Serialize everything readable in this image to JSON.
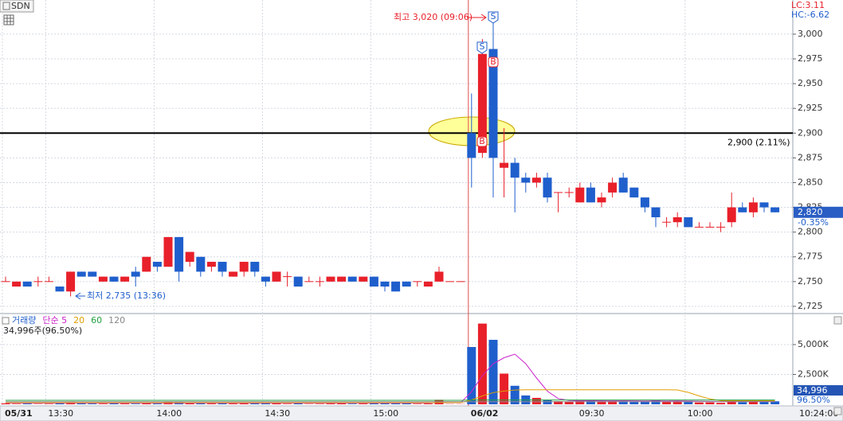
{
  "chart_data": {
    "type": "candlestick",
    "symbol": "SDN",
    "lc": "LC:3.11",
    "hc": "HC:-6.62",
    "categories": [
      "05/31",
      null,
      null,
      null,
      "13:30",
      null,
      null,
      null,
      null,
      null,
      null,
      null,
      null,
      null,
      "14:00",
      null,
      null,
      null,
      null,
      null,
      null,
      null,
      null,
      null,
      "14:30",
      null,
      null,
      null,
      null,
      null,
      null,
      null,
      null,
      null,
      "15:00",
      null,
      null,
      null,
      null,
      null,
      null,
      null,
      null,
      "06/02",
      null,
      null,
      null,
      null,
      null,
      null,
      null,
      null,
      null,
      "09:30",
      null,
      null,
      null,
      null,
      null,
      null,
      null,
      null,
      null,
      "10:00",
      null,
      null,
      null,
      null,
      null,
      null,
      null,
      null
    ],
    "open": [
      2750,
      2745,
      2750,
      2750,
      2750,
      2745,
      2740,
      2760,
      2760,
      2750,
      2755,
      2750,
      2760,
      2760,
      2770,
      2765,
      2795,
      2770,
      2775,
      2765,
      2770,
      2755,
      2760,
      2770,
      2755,
      2750,
      2755,
      2755,
      2750,
      2750,
      2750,
      2750,
      2755,
      2750,
      2755,
      2750,
      2750,
      2750,
      2750,
      2745,
      2750,
      2750,
      2750,
      2900,
      2880,
      2985,
      2865,
      2870,
      2855,
      2850,
      2855,
      2840,
      2840,
      2830,
      2845,
      2830,
      2840,
      2855,
      2845,
      2835,
      2825,
      2810,
      2810,
      2815,
      2805,
      2805,
      2805,
      2810,
      2825,
      2820,
      2830,
      2825
    ],
    "high": [
      2755,
      2750,
      2750,
      2755,
      2755,
      2745,
      2760,
      2760,
      2760,
      2755,
      2755,
      2755,
      2765,
      2775,
      2770,
      2795,
      2795,
      2780,
      2775,
      2770,
      2770,
      2760,
      2770,
      2770,
      2755,
      2760,
      2760,
      2755,
      2755,
      2755,
      2755,
      2755,
      2755,
      2755,
      2755,
      2750,
      2750,
      2750,
      2750,
      2750,
      2765,
      2750,
      2750,
      2940,
      2995,
      3020,
      2905,
      2875,
      2860,
      2860,
      2860,
      2840,
      2845,
      2850,
      2850,
      2840,
      2855,
      2860,
      2845,
      2835,
      2825,
      2815,
      2820,
      2815,
      2810,
      2810,
      2810,
      2840,
      2830,
      2835,
      2830,
      2825
    ],
    "low": [
      2750,
      2745,
      2745,
      2745,
      2750,
      2740,
      2735,
      2755,
      2755,
      2750,
      2750,
      2750,
      2745,
      2760,
      2760,
      2765,
      2750,
      2765,
      2755,
      2760,
      2755,
      2755,
      2755,
      2755,
      2745,
      2750,
      2745,
      2745,
      2750,
      2745,
      2750,
      2750,
      2750,
      2750,
      2745,
      2740,
      2740,
      2745,
      2745,
      2745,
      2750,
      2750,
      2750,
      2845,
      2875,
      2835,
      2835,
      2820,
      2840,
      2845,
      2830,
      2820,
      2835,
      2830,
      2830,
      2825,
      2835,
      2840,
      2835,
      2820,
      2805,
      2805,
      2805,
      2805,
      2805,
      2805,
      2800,
      2805,
      2820,
      2815,
      2820,
      2820
    ],
    "close": [
      2750,
      2750,
      2745,
      2750,
      2750,
      2740,
      2760,
      2755,
      2755,
      2755,
      2750,
      2755,
      2755,
      2775,
      2765,
      2795,
      2760,
      2780,
      2760,
      2770,
      2760,
      2760,
      2770,
      2760,
      2750,
      2760,
      2755,
      2745,
      2750,
      2750,
      2755,
      2755,
      2750,
      2755,
      2745,
      2745,
      2740,
      2745,
      2750,
      2750,
      2760,
      2750,
      2750,
      2875,
      2980,
      2875,
      2870,
      2855,
      2850,
      2855,
      2835,
      2840,
      2840,
      2845,
      2830,
      2835,
      2850,
      2840,
      2835,
      2825,
      2815,
      2810,
      2815,
      2805,
      2805,
      2805,
      2805,
      2825,
      2820,
      2830,
      2825,
      2820
    ],
    "up_color": "#e8202a",
    "down_color": "#1f5fcc",
    "ylim": [
      2718.5,
      3034.5
    ],
    "yticks": [
      {
        "value": 2725,
        "label": "2,725"
      },
      {
        "value": 2750,
        "label": "2,750"
      },
      {
        "value": 2775,
        "label": "2,775"
      },
      {
        "value": 2800,
        "label": "2,800"
      },
      {
        "value": 2825,
        "label": "2,825"
      },
      {
        "value": 2850,
        "label": "2,850"
      },
      {
        "value": 2875,
        "label": "2,875"
      },
      {
        "value": 2900,
        "label": "2,900"
      },
      {
        "value": 2925,
        "label": "2,925"
      },
      {
        "value": 2950,
        "label": "2,950"
      },
      {
        "value": 2975,
        "label": "2,975"
      },
      {
        "value": 3000,
        "label": "3,000"
      }
    ],
    "grid": true,
    "ref_line": {
      "value": 2900,
      "label": "2,900 (2.11%)",
      "color": "#000000"
    },
    "last_price": {
      "value": 2820,
      "label": "2,820"
    },
    "last_change": "-0.35%",
    "high_note": "최고 3,020 (09:06)",
    "low_note": "최저 2,735 (13:36)",
    "signals": [
      "S",
      "S",
      "B",
      "B"
    ],
    "last_time": "10:24:00",
    "volume_panel": {
      "ylim": [
        -133,
        7467
      ],
      "yticks": [
        {
          "value": 2500,
          "label": "2,500K"
        },
        {
          "value": 5000,
          "label": "5,000K"
        }
      ],
      "info": "34,996주(96.50%)",
      "last_label": "34,996",
      "last_ratio": "96.50%",
      "series": [
        {
          "name": "거래량",
          "color": "#1f5fcc",
          "values": [
            80,
            40,
            60,
            30,
            40,
            90,
            180,
            70,
            60,
            50,
            70,
            60,
            50,
            130,
            60,
            220,
            190,
            110,
            120,
            60,
            90,
            60,
            100,
            70,
            120,
            110,
            40,
            90,
            30,
            40,
            60,
            70,
            50,
            60,
            90,
            120,
            150,
            80,
            40,
            60,
            380,
            20,
            20,
            4800,
            6760,
            5400,
            2570,
            1550,
            740,
            540,
            380,
            260,
            200,
            320,
            340,
            250,
            300,
            260,
            240,
            280,
            330,
            200,
            280,
            300,
            150,
            160,
            120,
            320,
            180,
            260,
            200,
            250
          ]
        },
        {
          "name": "단순 5",
          "color": "#cc22cc",
          "values": [
            100,
            100,
            100,
            100,
            100,
            100,
            100,
            100,
            100,
            100,
            100,
            100,
            100,
            100,
            100,
            100,
            100,
            100,
            100,
            100,
            100,
            100,
            100,
            100,
            100,
            100,
            100,
            100,
            100,
            100,
            100,
            100,
            100,
            100,
            100,
            100,
            100,
            100,
            100,
            100,
            150,
            140,
            130,
            1050,
            2400,
            3400,
            3900,
            4200,
            3400,
            2200,
            1100,
            480,
            320,
            290,
            300,
            290,
            280,
            290,
            280,
            270,
            280,
            270,
            280,
            270,
            250,
            240,
            230,
            240,
            250,
            260,
            250,
            260
          ]
        },
        {
          "name": "20",
          "color": "#e0a000",
          "values": [
            130,
            130,
            130,
            130,
            130,
            130,
            130,
            130,
            130,
            130,
            130,
            130,
            130,
            130,
            130,
            130,
            130,
            130,
            130,
            130,
            130,
            130,
            130,
            130,
            130,
            130,
            130,
            130,
            130,
            130,
            130,
            130,
            130,
            130,
            130,
            130,
            130,
            130,
            130,
            130,
            140,
            140,
            140,
            360,
            700,
            980,
            1110,
            1190,
            1220,
            1220,
            1220,
            1220,
            1220,
            1220,
            1220,
            1220,
            1220,
            1220,
            1220,
            1220,
            1220,
            1220,
            1200,
            1000,
            700,
            450,
            300,
            300,
            300,
            300,
            300,
            300
          ]
        },
        {
          "name": "60",
          "color": "#22a040",
          "values": [
            330,
            330,
            330,
            330,
            330,
            330,
            330,
            330,
            330,
            330,
            330,
            330,
            330,
            330,
            330,
            330,
            330,
            330,
            330,
            330,
            330,
            330,
            330,
            330,
            330,
            330,
            330,
            330,
            330,
            330,
            330,
            330,
            330,
            330,
            330,
            330,
            330,
            330,
            330,
            330,
            330,
            330,
            330,
            360,
            360,
            360,
            360,
            360,
            360,
            360,
            360,
            360,
            360,
            360,
            360,
            360,
            360,
            360,
            360,
            360,
            360,
            360,
            360,
            360,
            360,
            360,
            360,
            360,
            360,
            360,
            360,
            360
          ]
        },
        {
          "name": "120",
          "color": "#888888",
          "values": [
            220,
            220,
            220,
            220,
            220,
            220,
            220,
            220,
            220,
            220,
            220,
            220,
            220,
            220,
            220,
            220,
            220,
            220,
            220,
            220,
            220,
            220,
            220,
            220,
            220,
            220,
            220,
            220,
            220,
            220,
            220,
            220,
            220,
            220,
            220,
            220,
            220,
            220,
            220,
            220,
            220,
            220,
            220,
            220,
            220,
            220,
            220,
            220,
            220,
            220,
            220,
            220,
            220,
            220,
            220,
            220,
            220,
            220,
            220,
            220,
            220,
            220,
            220,
            220,
            220,
            220,
            220,
            220,
            220,
            220,
            220,
            220
          ]
        }
      ]
    }
  }
}
